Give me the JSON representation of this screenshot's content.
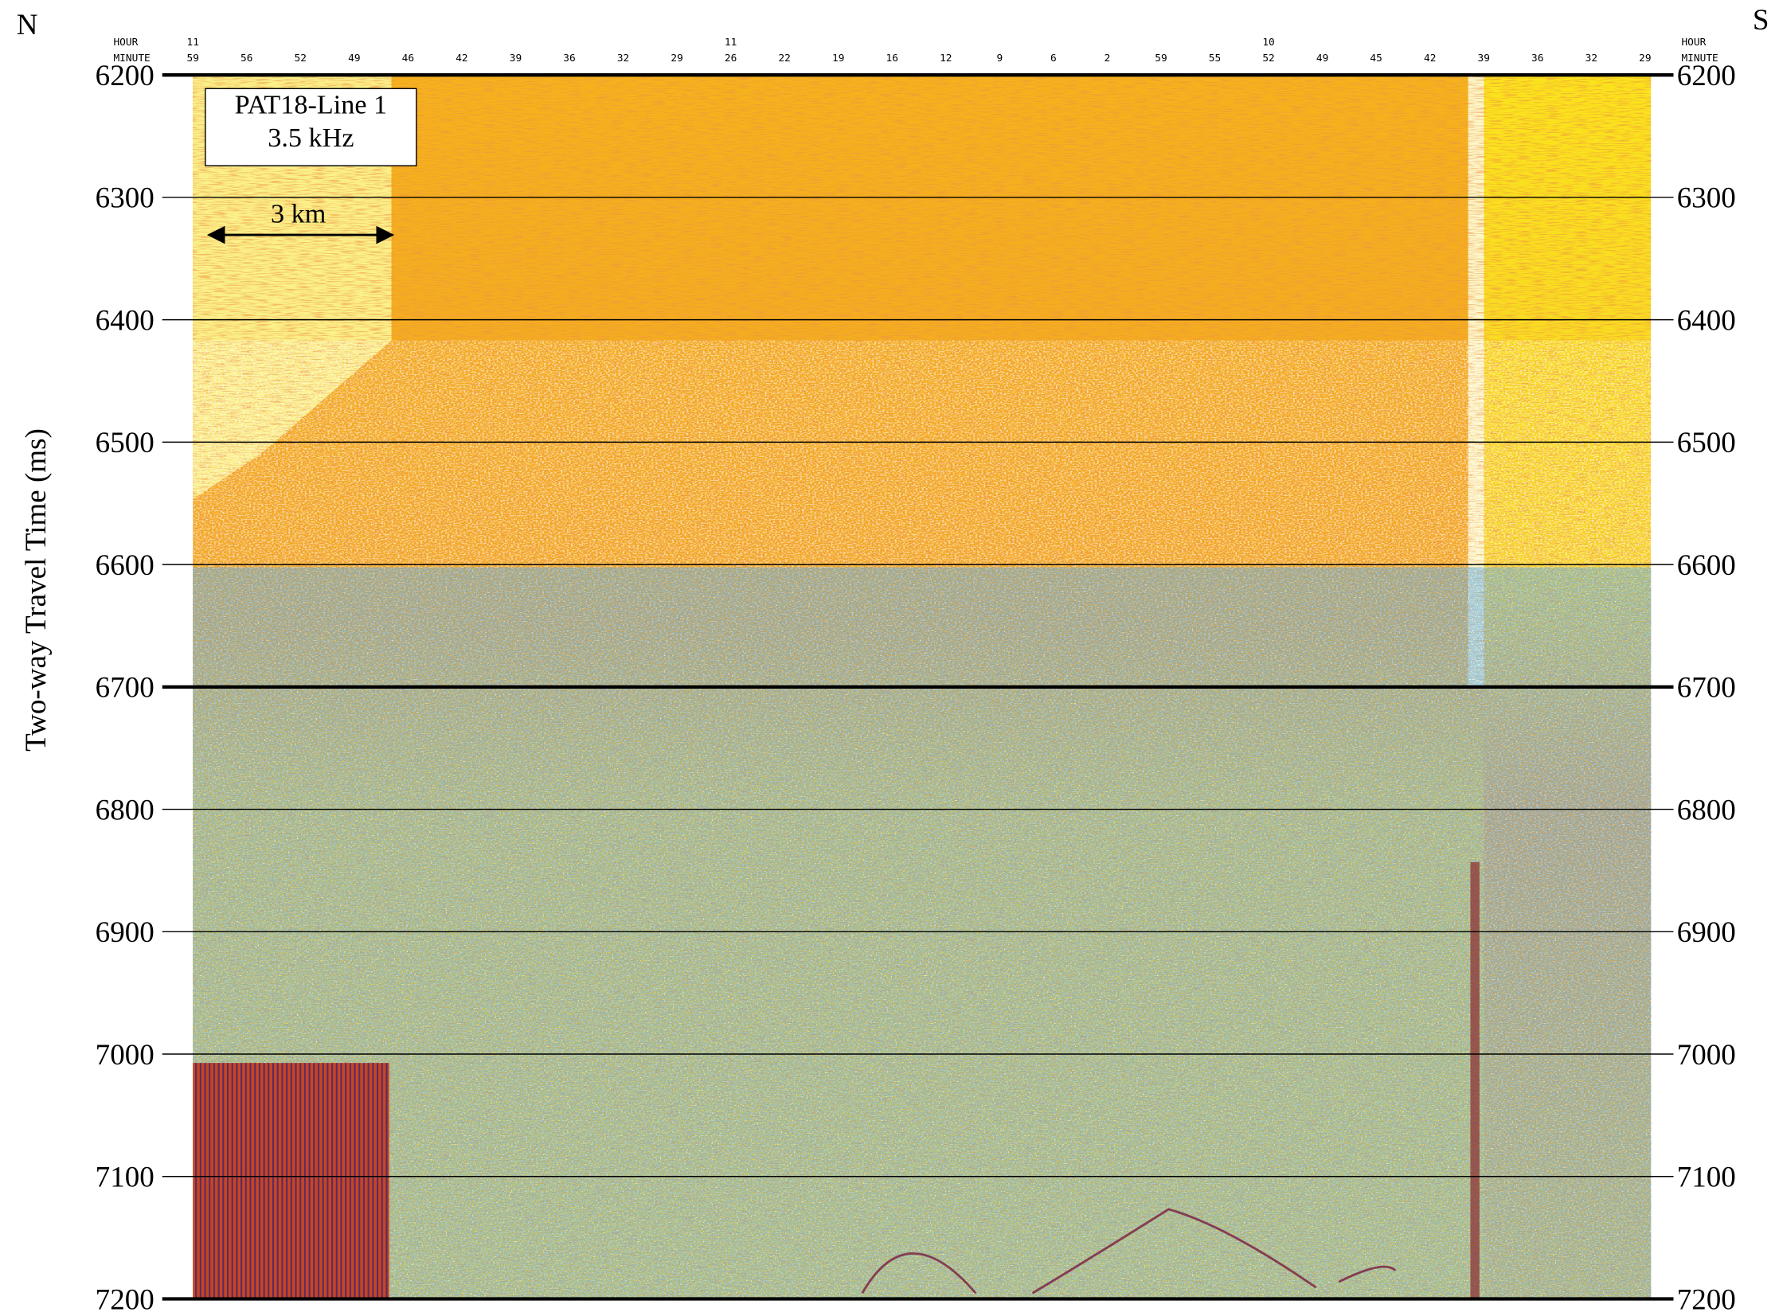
{
  "corner_labels": {
    "left": "N",
    "right": "S"
  },
  "label_box": {
    "line1": "PAT18-Line 1",
    "line2": "3.5 kHz"
  },
  "scale_bar": {
    "label": "3 km"
  },
  "y_axis": {
    "title": "Two-way Travel Time (ms)",
    "range": [
      6200,
      7200
    ],
    "ticks": [
      6200,
      6300,
      6400,
      6500,
      6600,
      6700,
      6800,
      6900,
      7000,
      7100,
      7200
    ]
  },
  "time_axis": {
    "hour_title": "HOUR",
    "minute_title": "MINUTE",
    "hours": [
      "11",
      null,
      null,
      null,
      null,
      null,
      null,
      null,
      null,
      null,
      "11",
      null,
      null,
      null,
      null,
      null,
      null,
      null,
      null,
      null,
      "10",
      null,
      null,
      null,
      null,
      null,
      null,
      null
    ],
    "minutes": [
      "59",
      "56",
      "52",
      "49",
      "46",
      "42",
      "39",
      "36",
      "32",
      "29",
      "26",
      "22",
      "19",
      "16",
      "12",
      "9",
      "6",
      "2",
      "59",
      "55",
      "52",
      "49",
      "45",
      "42",
      "39",
      "36",
      "32",
      "29"
    ]
  }
}
